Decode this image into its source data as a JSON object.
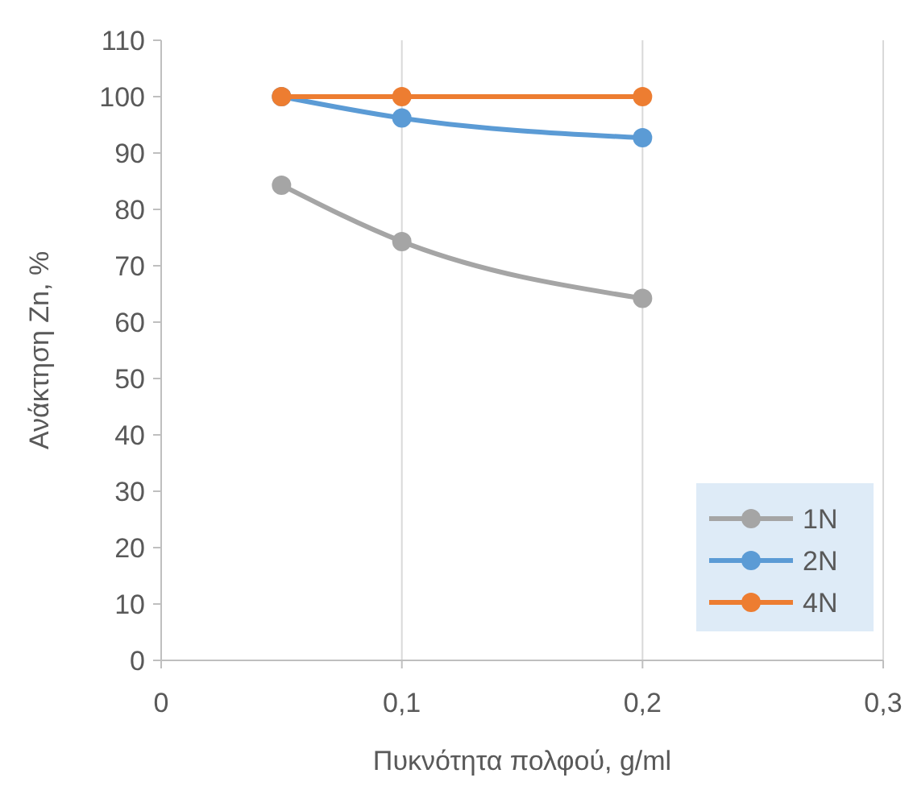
{
  "chart_data": {
    "type": "line",
    "xlabel": "Πυκνότητα πολφού, g/ml",
    "ylabel": "Ανάκτηση Zn, %",
    "x": [
      0.05,
      0.1,
      0.2
    ],
    "series": [
      {
        "name": "1N",
        "color": "#a5a5a5",
        "values": [
          84.3,
          74.3,
          64.2
        ]
      },
      {
        "name": "2N",
        "color": "#5b9bd5",
        "values": [
          100,
          96.2,
          92.7
        ]
      },
      {
        "name": "4N",
        "color": "#ed7d31",
        "values": [
          100,
          100,
          100
        ]
      }
    ],
    "xlim": [
      0,
      0.3
    ],
    "xticks": [
      0,
      {
        "value": 0.1,
        "label": "0,1"
      },
      {
        "value": 0.2,
        "label": "0,2"
      },
      {
        "value": 0.3,
        "label": "0,3"
      }
    ],
    "ylim": [
      0,
      110
    ],
    "yticks": [
      0,
      10,
      20,
      30,
      40,
      50,
      60,
      70,
      80,
      90,
      100,
      110
    ],
    "grid": "x",
    "legend": "bottom right",
    "marker": "circle",
    "line_style": "solid"
  }
}
